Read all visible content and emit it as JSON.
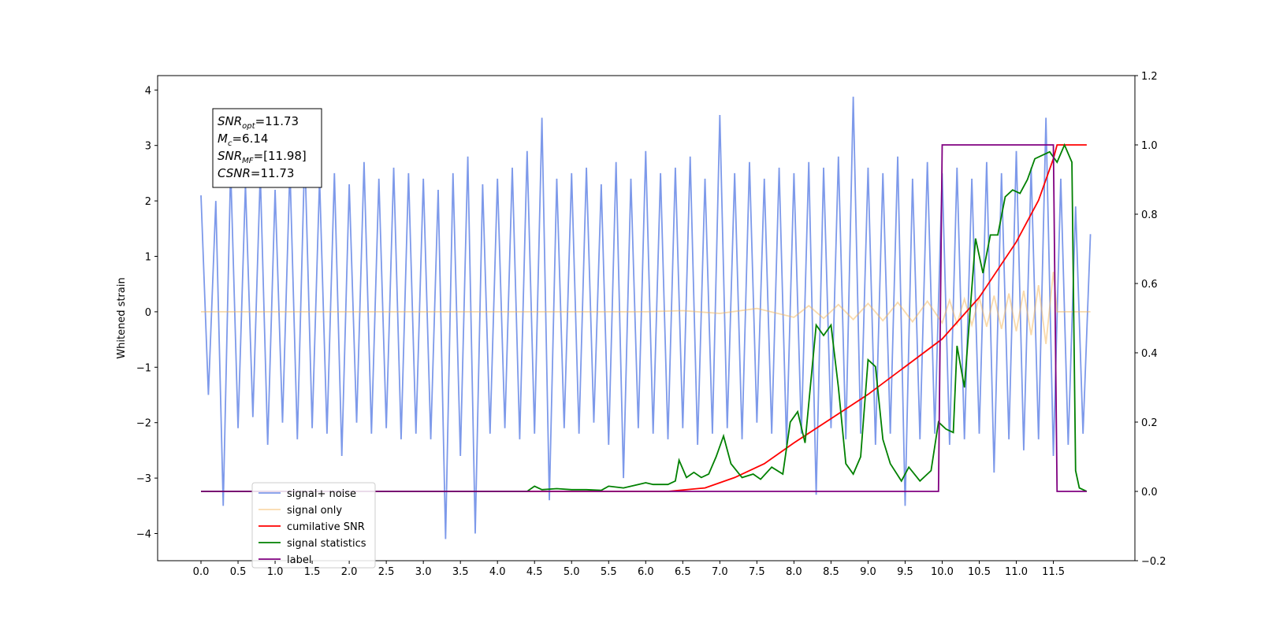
{
  "chart_data": {
    "type": "line",
    "ylabel": "Whitened strain",
    "xlim": [
      -0.585,
      12.6
    ],
    "ylim": [
      -4.49,
      4.26
    ],
    "y2lim": [
      -0.2,
      1.2
    ],
    "xticks": [
      {
        "value": 0,
        "label": "0.0"
      },
      {
        "value": 0.5,
        "label": "0.5"
      },
      {
        "value": 1,
        "label": "1.0"
      },
      {
        "value": 1.5,
        "label": "1.5"
      },
      {
        "value": 2,
        "label": "2.0"
      },
      {
        "value": 2.5,
        "label": "2.5"
      },
      {
        "value": 3,
        "label": "3.0"
      },
      {
        "value": 3.5,
        "label": "3.5"
      },
      {
        "value": 4,
        "label": "4.0"
      },
      {
        "value": 4.5,
        "label": "4.5"
      },
      {
        "value": 5,
        "label": "5.0"
      },
      {
        "value": 5.5,
        "label": "5.5"
      },
      {
        "value": 6,
        "label": "6.0"
      },
      {
        "value": 6.5,
        "label": "6.5"
      },
      {
        "value": 7,
        "label": "7.0"
      },
      {
        "value": 7.5,
        "label": "7.5"
      },
      {
        "value": 8,
        "label": "8.0"
      },
      {
        "value": 8.5,
        "label": "8.5"
      },
      {
        "value": 9,
        "label": "9.0"
      },
      {
        "value": 9.5,
        "label": "9.5"
      },
      {
        "value": 10,
        "label": "10.0"
      },
      {
        "value": 10.5,
        "label": "10.5"
      },
      {
        "value": 11,
        "label": "11.0"
      },
      {
        "value": 11.5,
        "label": "11.5"
      }
    ],
    "yticks": [
      {
        "value": -4,
        "label": "−4"
      },
      {
        "value": -3,
        "label": "−3"
      },
      {
        "value": -2,
        "label": "−2"
      },
      {
        "value": -1,
        "label": "−1"
      },
      0,
      1,
      2,
      3,
      4
    ],
    "y2ticks": [
      {
        "value": -0.2,
        "label": "−0.2"
      },
      {
        "value": 0,
        "label": "0.0"
      },
      {
        "value": 0.2,
        "label": "0.2"
      },
      {
        "value": 0.4,
        "label": "0.4"
      },
      {
        "value": 0.6,
        "label": "0.6"
      },
      {
        "value": 0.8,
        "label": "0.8"
      },
      {
        "value": 1,
        "label": "1.0"
      },
      {
        "value": 1.2,
        "label": "1.2"
      }
    ],
    "legend": "lower left",
    "annotations": [
      {
        "main": "SNR",
        "sub": "opt",
        "rest": "=11.73"
      },
      {
        "main": "M",
        "sub": "c",
        "rest": "=6.14"
      },
      {
        "main": "SNR",
        "sub": "MF",
        "rest": "=[11.98]"
      },
      {
        "main": "CSNR",
        "rest": "=11.73"
      }
    ],
    "series": [
      {
        "name": "signal+ noise",
        "color": "#6f8ee8",
        "axis": "y",
        "x": [
          0,
          0.1,
          0.2,
          0.3,
          0.4,
          0.5,
          0.6,
          0.7,
          0.8,
          0.9,
          1,
          1.1,
          1.2,
          1.3,
          1.4,
          1.5,
          1.6,
          1.7,
          1.8,
          1.9,
          2,
          2.1,
          2.2,
          2.3,
          2.4,
          2.5,
          2.6,
          2.7,
          2.8,
          2.9,
          3,
          3.1,
          3.2,
          3.3,
          3.4,
          3.5,
          3.6,
          3.7,
          3.8,
          3.9,
          4,
          4.1,
          4.2,
          4.3,
          4.4,
          4.5,
          4.6,
          4.7,
          4.8,
          4.9,
          5,
          5.1,
          5.2,
          5.3,
          5.4,
          5.5,
          5.6,
          5.7,
          5.8,
          5.9,
          6,
          6.1,
          6.2,
          6.3,
          6.4,
          6.5,
          6.6,
          6.7,
          6.8,
          6.9,
          7,
          7.1,
          7.2,
          7.3,
          7.4,
          7.5,
          7.6,
          7.7,
          7.8,
          7.9,
          8,
          8.1,
          8.2,
          8.3,
          8.4,
          8.5,
          8.6,
          8.7,
          8.8,
          8.9,
          9,
          9.1,
          9.2,
          9.3,
          9.4,
          9.5,
          9.6,
          9.7,
          9.8,
          9.9,
          10,
          10.1,
          10.2,
          10.3,
          10.4,
          10.5,
          10.6,
          10.7,
          10.8,
          10.9,
          11,
          11.1,
          11.2,
          11.3,
          11.4,
          11.5,
          11.6,
          11.7,
          11.8,
          11.9,
          12
        ],
        "values": [
          2.1,
          -1.5,
          2.0,
          -3.5,
          2.6,
          -2.1,
          2.3,
          -1.9,
          2.5,
          -2.4,
          2.2,
          -2.0,
          2.6,
          -2.3,
          2.9,
          -2.1,
          2.4,
          -2.2,
          2.5,
          -2.6,
          2.3,
          -2.0,
          2.7,
          -2.2,
          2.4,
          -2.1,
          2.6,
          -2.3,
          2.5,
          -2.2,
          2.4,
          -2.3,
          2.2,
          -4.1,
          2.5,
          -2.6,
          2.8,
          -4.0,
          2.3,
          -2.2,
          2.4,
          -2.1,
          2.6,
          -2.3,
          2.9,
          -2.2,
          3.5,
          -3.4,
          2.4,
          -2.1,
          2.5,
          -2.2,
          2.6,
          -2.0,
          2.3,
          -2.4,
          2.7,
          -3.0,
          2.4,
          -2.1,
          2.9,
          -2.2,
          2.5,
          -2.3,
          2.6,
          -2.1,
          2.8,
          -2.4,
          2.4,
          -2.2,
          3.55,
          -2.1,
          2.5,
          -2.3,
          2.7,
          -2.0,
          2.4,
          -2.2,
          2.6,
          -2.4,
          2.5,
          -2.2,
          2.7,
          -3.3,
          2.6,
          -2.1,
          2.8,
          -2.3,
          3.88,
          -2.2,
          2.6,
          -2.4,
          2.5,
          -2.2,
          2.8,
          -3.5,
          2.4,
          -2.3,
          2.7,
          -2.2,
          2.5,
          -2.4,
          2.6,
          -2.3,
          2.4,
          -2.2,
          2.7,
          -2.9,
          2.5,
          -2.3,
          2.9,
          -2.5,
          2.6,
          -2.3,
          3.5,
          -2.6,
          2.4,
          -2.4,
          1.9,
          -2.2,
          1.4
        ]
      },
      {
        "name": "signal only",
        "color": "#f3b55a",
        "axis": "y",
        "x": [
          0,
          6.0,
          6.5,
          7.0,
          7.5,
          8.0,
          8.2,
          8.4,
          8.6,
          8.8,
          9.0,
          9.2,
          9.4,
          9.6,
          9.8,
          10.0,
          10.1,
          10.2,
          10.3,
          10.4,
          10.5,
          10.6,
          10.7,
          10.8,
          10.9,
          11.0,
          11.1,
          11.2,
          11.3,
          11.4,
          11.5,
          11.55,
          12
        ],
        "values": [
          0,
          0,
          0.02,
          -0.03,
          0.06,
          -0.1,
          0.11,
          -0.12,
          0.13,
          -0.14,
          0.15,
          -0.16,
          0.17,
          -0.18,
          0.19,
          -0.2,
          0.21,
          -0.22,
          0.23,
          -0.24,
          0.26,
          -0.27,
          0.29,
          -0.31,
          0.33,
          -0.35,
          0.38,
          -0.42,
          0.48,
          -0.58,
          0.72,
          0,
          0
        ]
      },
      {
        "name": "cumilative SNR",
        "color": "#ff0000",
        "axis": "y2",
        "x": [
          0,
          6.3,
          6.8,
          7.2,
          7.6,
          8.0,
          8.5,
          9.0,
          9.5,
          10.0,
          10.5,
          11.0,
          11.3,
          11.5,
          11.55,
          11.95
        ],
        "values": [
          0,
          0,
          0.01,
          0.04,
          0.08,
          0.14,
          0.21,
          0.28,
          0.36,
          0.44,
          0.56,
          0.72,
          0.84,
          0.96,
          1.0,
          1.0
        ]
      },
      {
        "name": "signal statistics",
        "color": "#008000",
        "axis": "y2",
        "x": [
          0,
          4.4,
          4.5,
          4.6,
          4.8,
          5.0,
          5.2,
          5.4,
          5.5,
          5.7,
          5.9,
          6.0,
          6.1,
          6.3,
          6.4,
          6.45,
          6.55,
          6.65,
          6.75,
          6.85,
          6.95,
          7.05,
          7.15,
          7.3,
          7.45,
          7.55,
          7.7,
          7.85,
          7.95,
          8.05,
          8.15,
          8.3,
          8.4,
          8.5,
          8.6,
          8.7,
          8.8,
          8.9,
          9.0,
          9.1,
          9.2,
          9.3,
          9.45,
          9.55,
          9.7,
          9.85,
          9.95,
          10.05,
          10.15,
          10.2,
          10.3,
          10.45,
          10.55,
          10.65,
          10.75,
          10.85,
          10.95,
          11.05,
          11.15,
          11.25,
          11.35,
          11.45,
          11.55,
          11.65,
          11.75,
          11.8,
          11.85,
          11.95
        ],
        "values": [
          0,
          0,
          0.015,
          0.005,
          0.008,
          0.005,
          0.005,
          0.003,
          0.015,
          0.01,
          0.02,
          0.025,
          0.02,
          0.02,
          0.03,
          0.09,
          0.04,
          0.055,
          0.04,
          0.05,
          0.1,
          0.16,
          0.08,
          0.04,
          0.05,
          0.035,
          0.07,
          0.05,
          0.2,
          0.23,
          0.14,
          0.48,
          0.45,
          0.48,
          0.3,
          0.08,
          0.05,
          0.1,
          0.38,
          0.36,
          0.15,
          0.08,
          0.03,
          0.07,
          0.03,
          0.06,
          0.2,
          0.18,
          0.17,
          0.42,
          0.3,
          0.73,
          0.63,
          0.74,
          0.74,
          0.85,
          0.87,
          0.86,
          0.9,
          0.96,
          0.97,
          0.98,
          0.95,
          1.0,
          0.95,
          0.06,
          0.01,
          0.0
        ]
      },
      {
        "name": "label",
        "color": "#800080",
        "axis": "y2",
        "x": [
          0,
          9.95,
          10.0,
          11.5,
          11.55,
          11.95
        ],
        "values": [
          0,
          0,
          1,
          1,
          0,
          0
        ]
      }
    ]
  }
}
